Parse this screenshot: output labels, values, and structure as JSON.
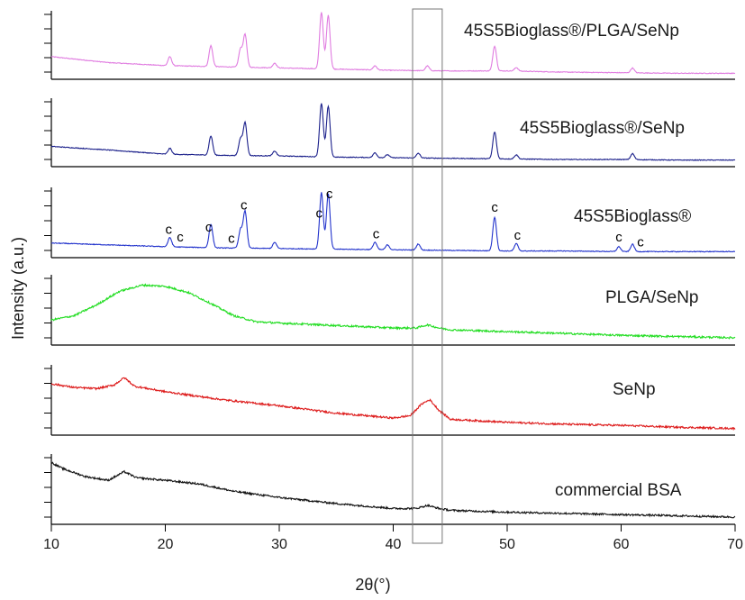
{
  "chart_data": {
    "type": "line",
    "xlabel": "2θ(°)",
    "ylabel": "Intensity (a.u.)",
    "xlim": [
      10,
      70
    ],
    "xticks": [
      10,
      20,
      30,
      40,
      50,
      60,
      70
    ],
    "highlight_range": [
      41.7,
      44.3
    ],
    "peak_marker_label": "c",
    "peak_markers": [
      20.3,
      21.3,
      23.8,
      25.8,
      26.9,
      33.5,
      34.4,
      38.5,
      48.9,
      50.9,
      59.8,
      61.7
    ],
    "series": [
      {
        "name": "45S5Bioglass®/PLGA/SeNp",
        "color": "#e07ce0",
        "baseline": [
          [
            10,
            0.32
          ],
          [
            15,
            0.22
          ],
          [
            20,
            0.17
          ],
          [
            25,
            0.15
          ],
          [
            30,
            0.13
          ],
          [
            35,
            0.11
          ],
          [
            40,
            0.09
          ],
          [
            45,
            0.08
          ],
          [
            50,
            0.08
          ],
          [
            55,
            0.06
          ],
          [
            60,
            0.05
          ],
          [
            65,
            0.04
          ],
          [
            70,
            0.04
          ]
        ],
        "bumps": [],
        "peaks": [
          [
            20.4,
            0.15
          ],
          [
            24.0,
            0.35
          ],
          [
            26.6,
            0.3
          ],
          [
            27.0,
            0.55
          ],
          [
            29.6,
            0.08
          ],
          [
            33.7,
            0.95
          ],
          [
            34.3,
            0.9
          ],
          [
            38.4,
            0.07
          ],
          [
            43.0,
            0.08
          ],
          [
            48.9,
            0.42
          ],
          [
            50.8,
            0.06
          ],
          [
            61.0,
            0.08
          ]
        ]
      },
      {
        "name": "45S5Bioglass®/SeNp",
        "color": "#1a1f8a",
        "baseline": [
          [
            10,
            0.28
          ],
          [
            15,
            0.22
          ],
          [
            20,
            0.15
          ],
          [
            25,
            0.13
          ],
          [
            30,
            0.12
          ],
          [
            35,
            0.1
          ],
          [
            40,
            0.09
          ],
          [
            45,
            0.08
          ],
          [
            50,
            0.07
          ],
          [
            55,
            0.06
          ],
          [
            60,
            0.06
          ],
          [
            65,
            0.05
          ],
          [
            70,
            0.05
          ]
        ],
        "bumps": [],
        "peaks": [
          [
            20.4,
            0.1
          ],
          [
            24.0,
            0.32
          ],
          [
            26.6,
            0.28
          ],
          [
            27.0,
            0.55
          ],
          [
            29.6,
            0.08
          ],
          [
            33.7,
            0.9
          ],
          [
            34.3,
            0.85
          ],
          [
            38.4,
            0.08
          ],
          [
            39.5,
            0.05
          ],
          [
            42.2,
            0.08
          ],
          [
            48.9,
            0.45
          ],
          [
            50.8,
            0.07
          ],
          [
            61.0,
            0.1
          ]
        ]
      },
      {
        "name": "45S5Bioglass®",
        "color": "#2233cc",
        "baseline": [
          [
            10,
            0.18
          ],
          [
            15,
            0.15
          ],
          [
            20,
            0.12
          ],
          [
            25,
            0.1
          ],
          [
            30,
            0.09
          ],
          [
            35,
            0.08
          ],
          [
            40,
            0.07
          ],
          [
            45,
            0.06
          ],
          [
            50,
            0.05
          ],
          [
            55,
            0.05
          ],
          [
            60,
            0.04
          ],
          [
            65,
            0.04
          ],
          [
            70,
            0.04
          ]
        ],
        "bumps": [],
        "peaks": [
          [
            20.4,
            0.15
          ],
          [
            24.0,
            0.38
          ],
          [
            26.6,
            0.3
          ],
          [
            27.0,
            0.6
          ],
          [
            29.6,
            0.1
          ],
          [
            33.7,
            0.92
          ],
          [
            34.3,
            0.9
          ],
          [
            38.4,
            0.12
          ],
          [
            39.5,
            0.08
          ],
          [
            42.2,
            0.1
          ],
          [
            48.9,
            0.55
          ],
          [
            50.8,
            0.12
          ],
          [
            59.8,
            0.08
          ],
          [
            61.0,
            0.12
          ]
        ]
      },
      {
        "name": "PLGA/SeNp",
        "color": "#22dd22",
        "baseline": [
          [
            10,
            0.35
          ],
          [
            12,
            0.42
          ],
          [
            14,
            0.6
          ],
          [
            16,
            0.82
          ],
          [
            18,
            0.92
          ],
          [
            20,
            0.9
          ],
          [
            22,
            0.8
          ],
          [
            24,
            0.62
          ],
          [
            26,
            0.42
          ],
          [
            28,
            0.32
          ],
          [
            30,
            0.3
          ],
          [
            35,
            0.26
          ],
          [
            40,
            0.22
          ],
          [
            42,
            0.22
          ],
          [
            43,
            0.27
          ],
          [
            44,
            0.22
          ],
          [
            45,
            0.19
          ],
          [
            50,
            0.16
          ],
          [
            55,
            0.13
          ],
          [
            60,
            0.1
          ],
          [
            65,
            0.08
          ],
          [
            70,
            0.06
          ]
        ],
        "bumps": [],
        "peaks": []
      },
      {
        "name": "SeNp",
        "color": "#dd1a1a",
        "baseline": [
          [
            10,
            0.78
          ],
          [
            12,
            0.72
          ],
          [
            14,
            0.7
          ],
          [
            15.5,
            0.76
          ],
          [
            16.4,
            0.88
          ],
          [
            17.3,
            0.74
          ],
          [
            20,
            0.65
          ],
          [
            25,
            0.52
          ],
          [
            30,
            0.42
          ],
          [
            35,
            0.3
          ],
          [
            40,
            0.22
          ],
          [
            41.5,
            0.26
          ],
          [
            42.5,
            0.45
          ],
          [
            43.2,
            0.52
          ],
          [
            44,
            0.35
          ],
          [
            45,
            0.2
          ],
          [
            50,
            0.15
          ],
          [
            55,
            0.12
          ],
          [
            60,
            0.1
          ],
          [
            65,
            0.07
          ],
          [
            70,
            0.05
          ]
        ],
        "bumps": [],
        "peaks": []
      },
      {
        "name": "commercial BSA",
        "color": "#111111",
        "baseline": [
          [
            10,
            0.95
          ],
          [
            11,
            0.85
          ],
          [
            13,
            0.72
          ],
          [
            15,
            0.66
          ],
          [
            16.4,
            0.8
          ],
          [
            17.5,
            0.7
          ],
          [
            20,
            0.66
          ],
          [
            23,
            0.6
          ],
          [
            26,
            0.48
          ],
          [
            30,
            0.38
          ],
          [
            35,
            0.28
          ],
          [
            40,
            0.2
          ],
          [
            42,
            0.2
          ],
          [
            43,
            0.25
          ],
          [
            44,
            0.2
          ],
          [
            45,
            0.17
          ],
          [
            50,
            0.14
          ],
          [
            55,
            0.12
          ],
          [
            60,
            0.1
          ],
          [
            65,
            0.08
          ],
          [
            70,
            0.06
          ]
        ],
        "bumps": [],
        "peaks": []
      }
    ]
  }
}
